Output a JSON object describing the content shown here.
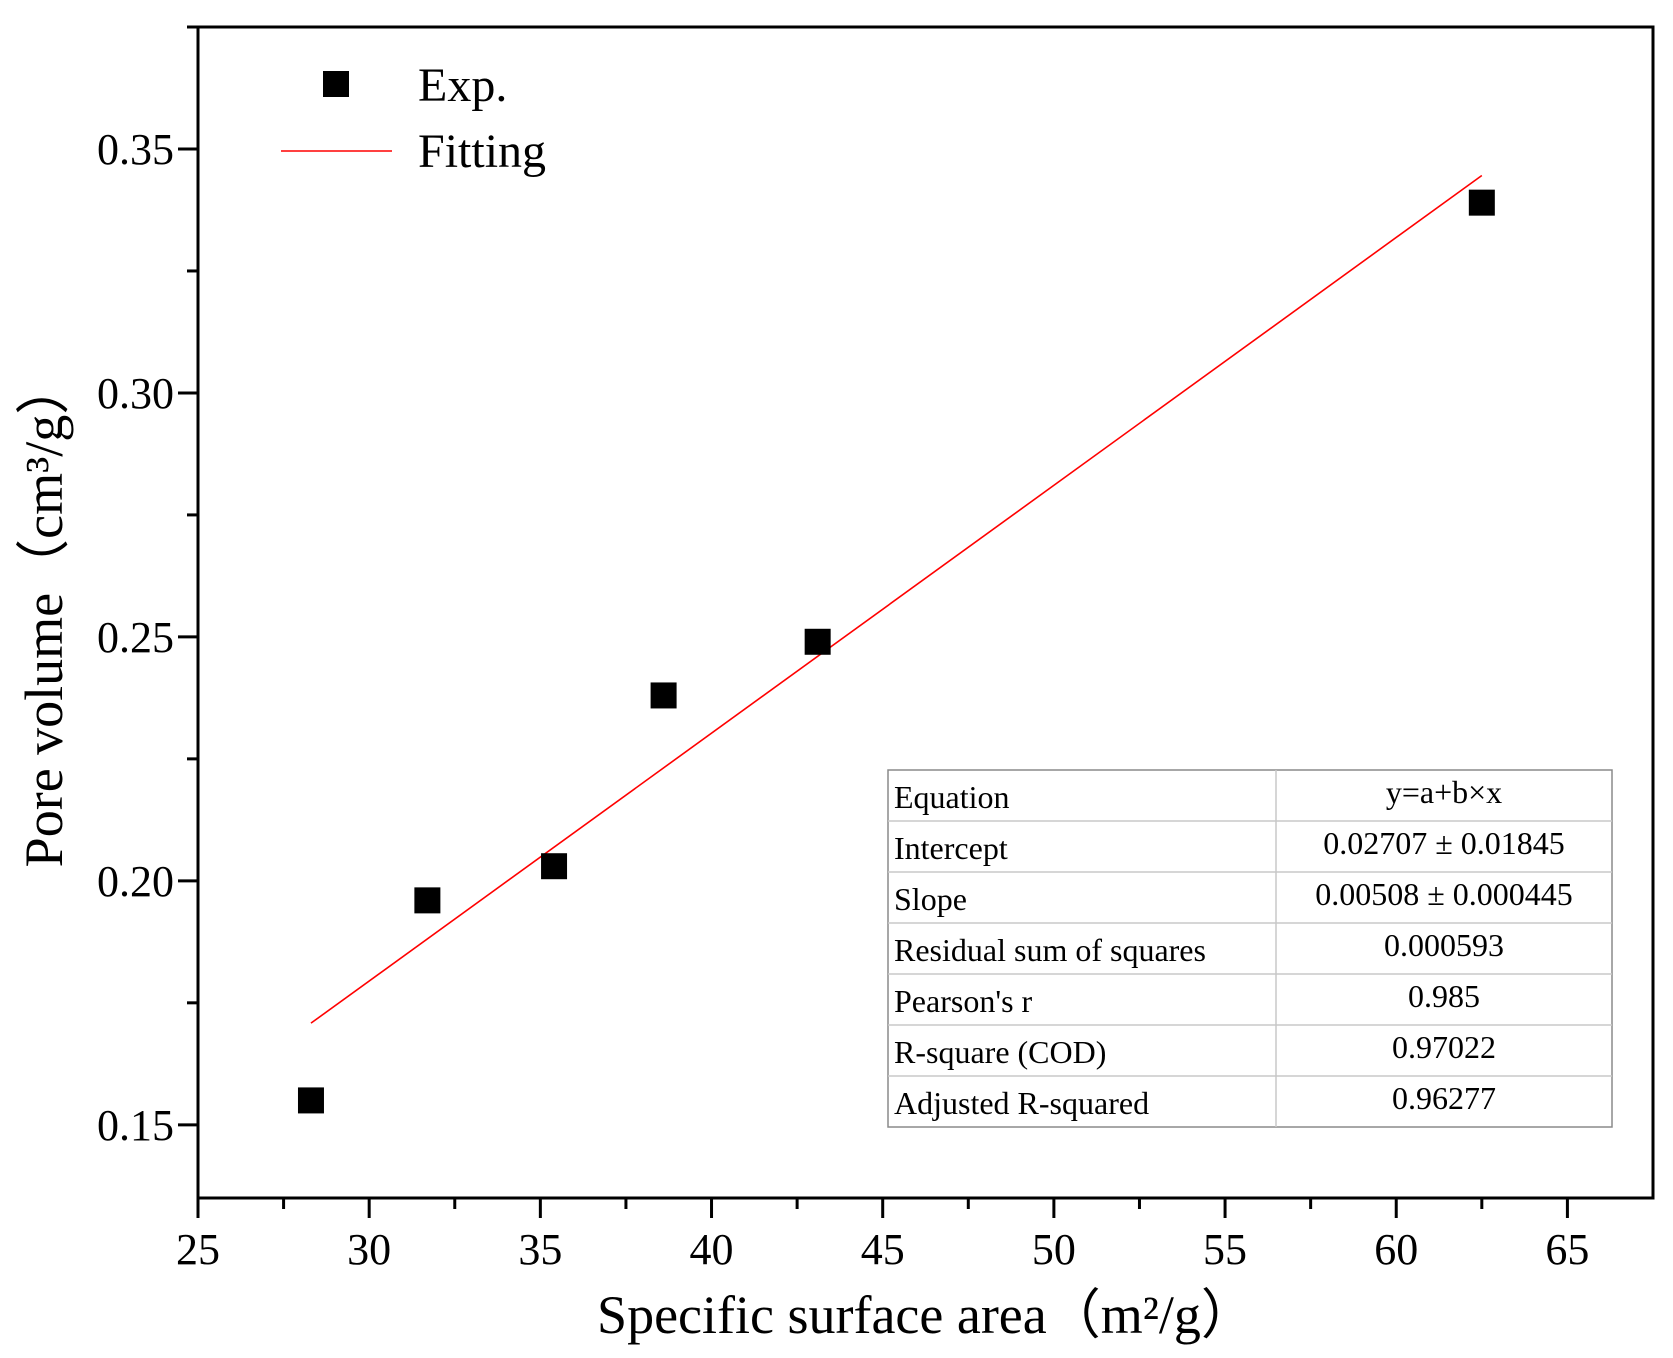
{
  "chart_data": {
    "type": "scatter",
    "title": "",
    "xlabel": "Specific surface area（m²/g）",
    "ylabel": "Pore volume（cm³/g）",
    "xlim": [
      25,
      67.5
    ],
    "ylim": [
      0.135,
      0.375
    ],
    "x_ticks": [
      25,
      30,
      35,
      40,
      45,
      50,
      55,
      60,
      65
    ],
    "x_tick_labels": [
      "25",
      "30",
      "35",
      "40",
      "45",
      "50",
      "55",
      "60",
      "65"
    ],
    "y_ticks": [
      0.15,
      0.2,
      0.25,
      0.3,
      0.35
    ],
    "y_tick_labels": [
      "0.15",
      "0.20",
      "0.25",
      "0.30",
      "0.35"
    ],
    "grid": false,
    "legend_position": "top-left",
    "series": [
      {
        "name": "Exp.",
        "kind": "scatter",
        "marker": "square",
        "color": "#000000",
        "points": [
          {
            "x": 28.3,
            "y": 0.155
          },
          {
            "x": 31.7,
            "y": 0.196
          },
          {
            "x": 35.4,
            "y": 0.203
          },
          {
            "x": 38.6,
            "y": 0.238
          },
          {
            "x": 43.1,
            "y": 0.249
          },
          {
            "x": 62.5,
            "y": 0.339
          }
        ]
      },
      {
        "name": "Fitting",
        "kind": "line",
        "color": "#ff0000",
        "intercept": 0.02707,
        "slope": 0.00508,
        "x_range": [
          28.3,
          62.5
        ]
      }
    ],
    "fit_table": [
      {
        "label": "Equation",
        "value": "y=a+b×x"
      },
      {
        "label": "Intercept",
        "value": "0.02707 ± 0.01845"
      },
      {
        "label": "Slope",
        "value": "0.00508 ± 0.000445"
      },
      {
        "label": "Residual sum of squares",
        "value": "0.000593"
      },
      {
        "label": "Pearson's r",
        "value": "0.985"
      },
      {
        "label": "R-square (COD)",
        "value": "0.97022"
      },
      {
        "label": "Adjusted R-squared",
        "value": "0.96277"
      }
    ]
  }
}
